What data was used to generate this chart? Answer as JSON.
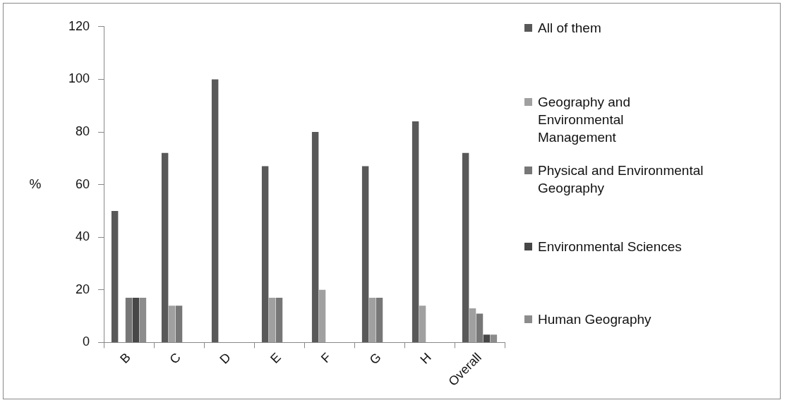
{
  "chart_data": {
    "type": "bar",
    "ylabel": "%",
    "categories": [
      "B",
      "C",
      "D",
      "E",
      "F",
      "G",
      "H",
      "Overall"
    ],
    "series": [
      {
        "name": "All of them",
        "color": "#595959",
        "values": [
          50,
          72,
          100,
          67,
          80,
          67,
          84,
          72
        ]
      },
      {
        "name": "Geography and Environmental Management",
        "color": "#a0a0a0",
        "values": [
          0,
          14,
          0,
          17,
          20,
          17,
          14,
          13
        ]
      },
      {
        "name": "Physical and Environmental Geography",
        "color": "#777777",
        "values": [
          17,
          14,
          0,
          17,
          0,
          17,
          0,
          11
        ]
      },
      {
        "name": "Environmental Sciences",
        "color": "#474747",
        "values": [
          17,
          0,
          0,
          0,
          0,
          0,
          0,
          3
        ]
      },
      {
        "name": "Human Geography",
        "color": "#8c8c8c",
        "values": [
          17,
          0,
          0,
          0,
          0,
          0,
          0,
          3
        ]
      }
    ],
    "ylim": [
      0,
      120
    ],
    "yticks": [
      0,
      20,
      40,
      60,
      80,
      100,
      120
    ],
    "grid": false,
    "legend": "right"
  }
}
